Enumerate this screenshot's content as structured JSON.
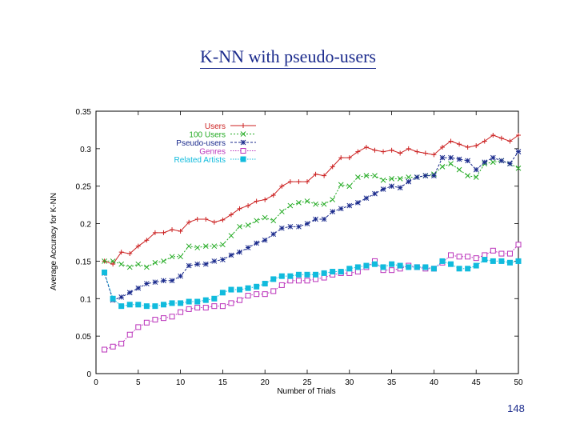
{
  "slide": {
    "title": "K-NN with pseudo-users",
    "page_number": "148"
  },
  "chart_data": {
    "type": "line",
    "title": "",
    "xlabel": "Number of Trials",
    "ylabel": "Average Accuracy for K-NN",
    "xlim": [
      0,
      50
    ],
    "ylim": [
      0,
      0.35
    ],
    "xticks": [
      "0",
      "5",
      "10",
      "15",
      "20",
      "25",
      "30",
      "35",
      "40",
      "45",
      "50"
    ],
    "yticks": [
      "0",
      "0.05",
      "0.1",
      "0.15",
      "0.2",
      "0.25",
      "0.3",
      "0.35"
    ],
    "legend_position": "top-center",
    "x": [
      1,
      2,
      3,
      4,
      5,
      6,
      7,
      8,
      9,
      10,
      11,
      12,
      13,
      14,
      15,
      16,
      17,
      18,
      19,
      20,
      21,
      22,
      23,
      24,
      25,
      26,
      27,
      28,
      29,
      30,
      31,
      32,
      33,
      34,
      35,
      36,
      37,
      38,
      39,
      40,
      41,
      42,
      43,
      44,
      45,
      46,
      47,
      48,
      49,
      50
    ],
    "series": [
      {
        "name": "Users",
        "color": "#cc2222",
        "marker": "plus",
        "values": [
          0.15,
          0.146,
          0.162,
          0.16,
          0.17,
          0.178,
          0.188,
          0.188,
          0.192,
          0.19,
          0.202,
          0.206,
          0.206,
          0.202,
          0.205,
          0.212,
          0.22,
          0.224,
          0.23,
          0.232,
          0.238,
          0.25,
          0.256,
          0.256,
          0.256,
          0.266,
          0.264,
          0.276,
          0.288,
          0.288,
          0.296,
          0.302,
          0.298,
          0.296,
          0.298,
          0.294,
          0.3,
          0.296,
          0.294,
          0.292,
          0.302,
          0.31,
          0.306,
          0.302,
          0.304,
          0.31,
          0.318,
          0.314,
          0.31,
          0.318
        ]
      },
      {
        "name": "100 Users",
        "color": "#22aa22",
        "marker": "x",
        "values": [
          0.15,
          0.15,
          0.146,
          0.142,
          0.146,
          0.142,
          0.148,
          0.15,
          0.156,
          0.156,
          0.17,
          0.168,
          0.17,
          0.17,
          0.172,
          0.184,
          0.196,
          0.198,
          0.204,
          0.208,
          0.204,
          0.216,
          0.224,
          0.228,
          0.23,
          0.226,
          0.226,
          0.232,
          0.252,
          0.25,
          0.262,
          0.264,
          0.264,
          0.258,
          0.26,
          0.26,
          0.262,
          0.262,
          0.264,
          0.266,
          0.276,
          0.28,
          0.272,
          0.264,
          0.262,
          0.28,
          0.282,
          0.284,
          0.28,
          0.274
        ]
      },
      {
        "name": "Pseudo-users",
        "color": "#1a2a8c",
        "marker": "star",
        "values": [
          0.134,
          0.098,
          0.102,
          0.108,
          0.114,
          0.12,
          0.122,
          0.124,
          0.124,
          0.13,
          0.144,
          0.146,
          0.146,
          0.15,
          0.152,
          0.158,
          0.162,
          0.168,
          0.174,
          0.178,
          0.186,
          0.194,
          0.196,
          0.196,
          0.2,
          0.206,
          0.206,
          0.216,
          0.22,
          0.224,
          0.228,
          0.234,
          0.24,
          0.246,
          0.25,
          0.248,
          0.256,
          0.262,
          0.264,
          0.264,
          0.288,
          0.288,
          0.286,
          0.284,
          0.272,
          0.282,
          0.288,
          0.284,
          0.28,
          0.296
        ]
      },
      {
        "name": "Genres",
        "color": "#bb33bb",
        "marker": "open-square",
        "values": [
          0.032,
          0.036,
          0.04,
          0.052,
          0.062,
          0.068,
          0.072,
          0.074,
          0.076,
          0.082,
          0.086,
          0.088,
          0.088,
          0.09,
          0.09,
          0.094,
          0.098,
          0.104,
          0.106,
          0.106,
          0.11,
          0.118,
          0.124,
          0.124,
          0.124,
          0.126,
          0.128,
          0.132,
          0.134,
          0.134,
          0.136,
          0.142,
          0.15,
          0.138,
          0.138,
          0.14,
          0.144,
          0.142,
          0.14,
          0.14,
          0.148,
          0.158,
          0.156,
          0.156,
          0.154,
          0.158,
          0.164,
          0.16,
          0.16,
          0.172
        ]
      },
      {
        "name": "Related Artists",
        "color": "#11bbdd",
        "marker": "filled-square",
        "values": [
          0.135,
          0.1,
          0.09,
          0.092,
          0.092,
          0.09,
          0.09,
          0.092,
          0.094,
          0.094,
          0.096,
          0.096,
          0.098,
          0.1,
          0.108,
          0.112,
          0.112,
          0.114,
          0.116,
          0.12,
          0.126,
          0.13,
          0.13,
          0.132,
          0.132,
          0.132,
          0.134,
          0.136,
          0.136,
          0.14,
          0.142,
          0.144,
          0.146,
          0.142,
          0.146,
          0.144,
          0.142,
          0.142,
          0.142,
          0.14,
          0.15,
          0.146,
          0.14,
          0.14,
          0.144,
          0.152,
          0.15,
          0.15,
          0.148,
          0.15
        ]
      }
    ]
  }
}
